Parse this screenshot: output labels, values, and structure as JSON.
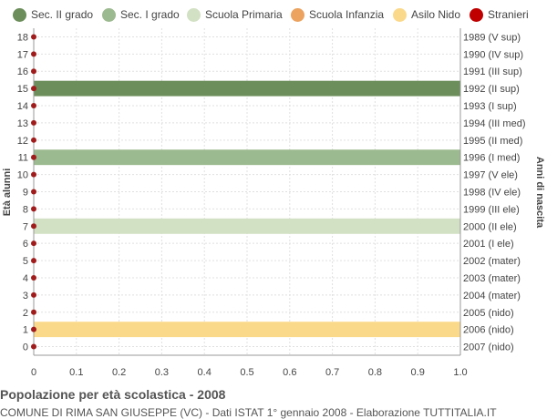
{
  "legend": [
    {
      "label": "Sec. II grado",
      "color": "#6b8e5a"
    },
    {
      "label": "Sec. I grado",
      "color": "#9cba8f"
    },
    {
      "label": "Scuola Primaria",
      "color": "#d2e0c3"
    },
    {
      "label": "Scuola Infanzia",
      "color": "#eba35f"
    },
    {
      "label": "Asilo Nido",
      "color": "#fbd98a"
    },
    {
      "label": "Stranieri",
      "color": "#c00000"
    }
  ],
  "caption": {
    "title": "Popolazione per età scolastica - 2008",
    "subtitle": "COMUNE DI RIMA SAN GIUSEPPE (VC) - Dati ISTAT 1° gennaio 2008 - Elaborazione TUTTITALIA.IT"
  },
  "chart_data": {
    "type": "bar",
    "orientation": "horizontal",
    "ylabel_left": "Età alunni",
    "ylabel_right": "Anni di nascita",
    "xlim": [
      0,
      1.0
    ],
    "x_ticks": [
      "0",
      "0.1",
      "0.2",
      "0.3",
      "0.4",
      "0.5",
      "0.6",
      "0.7",
      "0.8",
      "0.9",
      "1.0"
    ],
    "grid": true,
    "legend_position": "top",
    "ages": [
      {
        "age": "18",
        "birth": "1989 (V sup)",
        "value": 0,
        "color": "#6b8e5a",
        "stranieri": 0
      },
      {
        "age": "17",
        "birth": "1990 (IV sup)",
        "value": 0,
        "color": "#6b8e5a",
        "stranieri": 0
      },
      {
        "age": "16",
        "birth": "1991 (III sup)",
        "value": 0,
        "color": "#6b8e5a",
        "stranieri": 0
      },
      {
        "age": "15",
        "birth": "1992 (II sup)",
        "value": 1,
        "color": "#6b8e5a",
        "stranieri": 0
      },
      {
        "age": "14",
        "birth": "1993 (I sup)",
        "value": 0,
        "color": "#6b8e5a",
        "stranieri": 0
      },
      {
        "age": "13",
        "birth": "1994 (III med)",
        "value": 0,
        "color": "#9cba8f",
        "stranieri": 0
      },
      {
        "age": "12",
        "birth": "1995 (II med)",
        "value": 0,
        "color": "#9cba8f",
        "stranieri": 0
      },
      {
        "age": "11",
        "birth": "1996 (I med)",
        "value": 1,
        "color": "#9cba8f",
        "stranieri": 0
      },
      {
        "age": "10",
        "birth": "1997 (V ele)",
        "value": 0,
        "color": "#d2e0c3",
        "stranieri": 0
      },
      {
        "age": "9",
        "birth": "1998 (IV ele)",
        "value": 0,
        "color": "#d2e0c3",
        "stranieri": 0
      },
      {
        "age": "8",
        "birth": "1999 (III ele)",
        "value": 0,
        "color": "#d2e0c3",
        "stranieri": 0
      },
      {
        "age": "7",
        "birth": "2000 (II ele)",
        "value": 1,
        "color": "#d2e0c3",
        "stranieri": 0
      },
      {
        "age": "6",
        "birth": "2001 (I ele)",
        "value": 0,
        "color": "#d2e0c3",
        "stranieri": 0
      },
      {
        "age": "5",
        "birth": "2002 (mater)",
        "value": 0,
        "color": "#eba35f",
        "stranieri": 0
      },
      {
        "age": "4",
        "birth": "2003 (mater)",
        "value": 0,
        "color": "#eba35f",
        "stranieri": 0
      },
      {
        "age": "3",
        "birth": "2004 (mater)",
        "value": 0,
        "color": "#eba35f",
        "stranieri": 0
      },
      {
        "age": "2",
        "birth": "2005 (nido)",
        "value": 0,
        "color": "#fbd98a",
        "stranieri": 0
      },
      {
        "age": "1",
        "birth": "2006 (nido)",
        "value": 1,
        "color": "#fbd98a",
        "stranieri": 0
      },
      {
        "age": "0",
        "birth": "2007 (nido)",
        "value": 0,
        "color": "#fbd98a",
        "stranieri": 0
      }
    ]
  }
}
